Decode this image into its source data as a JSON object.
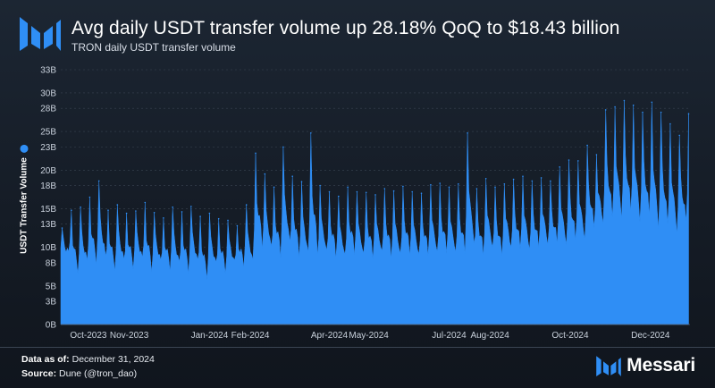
{
  "header": {
    "title": "Avg daily USDT transfer volume up 28.18% QoQ to $18.43 billion",
    "subtitle": "TRON daily USDT transfer volume"
  },
  "footer": {
    "data_as_of_label": "Data as of:",
    "data_as_of_value": "December 31, 2024",
    "source_label": "Source:",
    "source_value": "Dune (@tron_dao)"
  },
  "brand": {
    "name": "Messari"
  },
  "colors": {
    "series": "#2f8ef5",
    "background": "#171f2a",
    "grid": "#3a4452"
  },
  "chart_data": {
    "type": "area",
    "title": "Avg daily USDT transfer volume up 28.18% QoQ to $18.43 billion",
    "subtitle": "TRON daily USDT transfer volume",
    "xlabel": "",
    "ylabel": "USDT Transfer Volume",
    "yunit": "B",
    "ylim": [
      0,
      33
    ],
    "yticks": [
      0,
      3,
      5,
      8,
      10,
      13,
      15,
      18,
      20,
      23,
      25,
      28,
      30,
      33
    ],
    "ytick_labels": [
      "0B",
      "3B",
      "5B",
      "8B",
      "10B",
      "13B",
      "15B",
      "18B",
      "20B",
      "23B",
      "25B",
      "28B",
      "30B",
      "33B"
    ],
    "x_start": "2023-09-10",
    "x_end": "2024-12-31",
    "xticks": [
      "2023-10-01",
      "2023-11-01",
      "2024-01-01",
      "2024-02-01",
      "2024-04-01",
      "2024-05-01",
      "2024-07-01",
      "2024-08-01",
      "2024-10-01",
      "2024-12-01"
    ],
    "xtick_labels": [
      "Oct-2023",
      "Nov-2023",
      "Jan-2024",
      "Feb-2024",
      "Apr-2024",
      "May-2024",
      "Jul-2024",
      "Aug-2024",
      "Oct-2024",
      "Dec-2024"
    ],
    "grid": true,
    "legend": "left",
    "series": [
      {
        "name": "USDT Transfer Volume",
        "weekly_peak_dates": [
          "2023-09-11",
          "2023-09-18",
          "2023-09-25",
          "2023-10-02",
          "2023-10-09",
          "2023-10-16",
          "2023-10-23",
          "2023-10-30",
          "2023-11-06",
          "2023-11-13",
          "2023-11-20",
          "2023-11-27",
          "2023-12-04",
          "2023-12-11",
          "2023-12-18",
          "2023-12-25",
          "2024-01-01",
          "2024-01-08",
          "2024-01-15",
          "2024-01-22",
          "2024-01-29",
          "2024-02-05",
          "2024-02-12",
          "2024-02-19",
          "2024-02-26",
          "2024-03-04",
          "2024-03-11",
          "2024-03-18",
          "2024-03-25",
          "2024-04-01",
          "2024-04-08",
          "2024-04-15",
          "2024-04-22",
          "2024-04-29",
          "2024-05-06",
          "2024-05-13",
          "2024-05-20",
          "2024-05-27",
          "2024-06-03",
          "2024-06-10",
          "2024-06-17",
          "2024-06-24",
          "2024-07-01",
          "2024-07-08",
          "2024-07-15",
          "2024-07-22",
          "2024-07-29",
          "2024-08-05",
          "2024-08-12",
          "2024-08-19",
          "2024-08-26",
          "2024-09-02",
          "2024-09-09",
          "2024-09-16",
          "2024-09-23",
          "2024-09-30",
          "2024-10-07",
          "2024-10-14",
          "2024-10-21",
          "2024-10-28",
          "2024-11-04",
          "2024-11-11",
          "2024-11-18",
          "2024-11-25",
          "2024-12-02",
          "2024-12-09",
          "2024-12-16",
          "2024-12-23",
          "2024-12-30"
        ],
        "weekly_peaks": [
          12.5,
          14.8,
          15.2,
          16.5,
          18.6,
          14.8,
          15.5,
          14.4,
          14.7,
          15.8,
          14.5,
          13.8,
          15.2,
          14.6,
          15.3,
          14.0,
          14.4,
          13.7,
          13.5,
          12.8,
          15.5,
          22.2,
          19.5,
          17.8,
          23.0,
          19.2,
          18.5,
          24.8,
          18.0,
          17.2,
          16.6,
          17.8,
          17.2,
          17.1,
          16.8,
          17.6,
          17.3,
          17.9,
          17.2,
          17.0,
          18.1,
          18.3,
          17.8,
          18.2,
          24.8,
          17.6,
          18.9,
          17.8,
          18.2,
          18.8,
          19.2,
          18.6,
          19.0,
          18.6,
          20.4,
          21.3,
          21.2,
          23.2,
          22.0,
          27.8,
          28.2,
          29.0,
          28.4,
          27.5,
          28.8,
          27.5,
          26.0,
          24.5,
          27.3
        ],
        "weekly_troughs": [
          8.5,
          6.0,
          6.8,
          7.2,
          7.0,
          6.5,
          6.9,
          6.8,
          7.3,
          6.2,
          6.9,
          6.6,
          6.5,
          6.2,
          6.8,
          5.4,
          6.6,
          6.3,
          7.0,
          7.3,
          6.8,
          8.8,
          8.2,
          8.0,
          8.5,
          7.8,
          7.6,
          7.5,
          7.9,
          8.0,
          7.5,
          8.3,
          7.6,
          7.8,
          8.1,
          7.8,
          7.7,
          8.2,
          7.6,
          8.2,
          7.9,
          8.3,
          8.0,
          8.2,
          8.3,
          8.0,
          8.6,
          7.9,
          8.7,
          8.7,
          8.4,
          8.8,
          9.2,
          9.4,
          9.0,
          9.5,
          9.7,
          11.0,
          12.0,
          11.8,
          12.0,
          12.5,
          11.5,
          12.2,
          10.5,
          10.8,
          10.2,
          11.4,
          9.5
        ]
      }
    ]
  }
}
